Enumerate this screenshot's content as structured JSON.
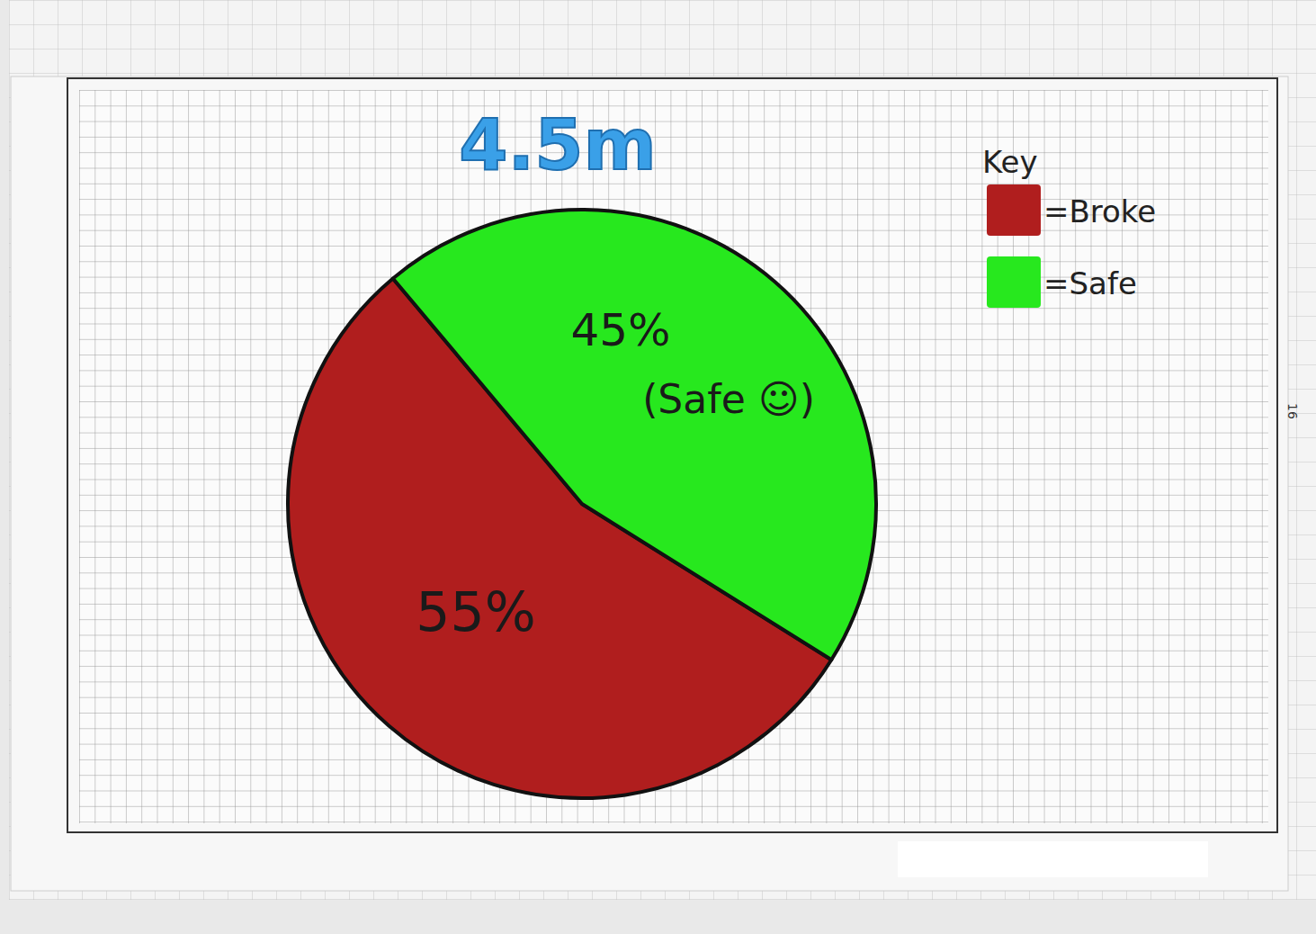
{
  "chart_data": {
    "type": "pie",
    "title": "4.5m",
    "categories": [
      "=Broke",
      "=Safe"
    ],
    "values": [
      55,
      45
    ],
    "value_labels": [
      "55%",
      "45%"
    ],
    "colors": [
      "#b01e1e",
      "#27e81e"
    ],
    "data_labels": true,
    "legend": "top-right",
    "legend_title": "Key",
    "annotations": [
      "(Safe ☺)",
      "16"
    ]
  }
}
